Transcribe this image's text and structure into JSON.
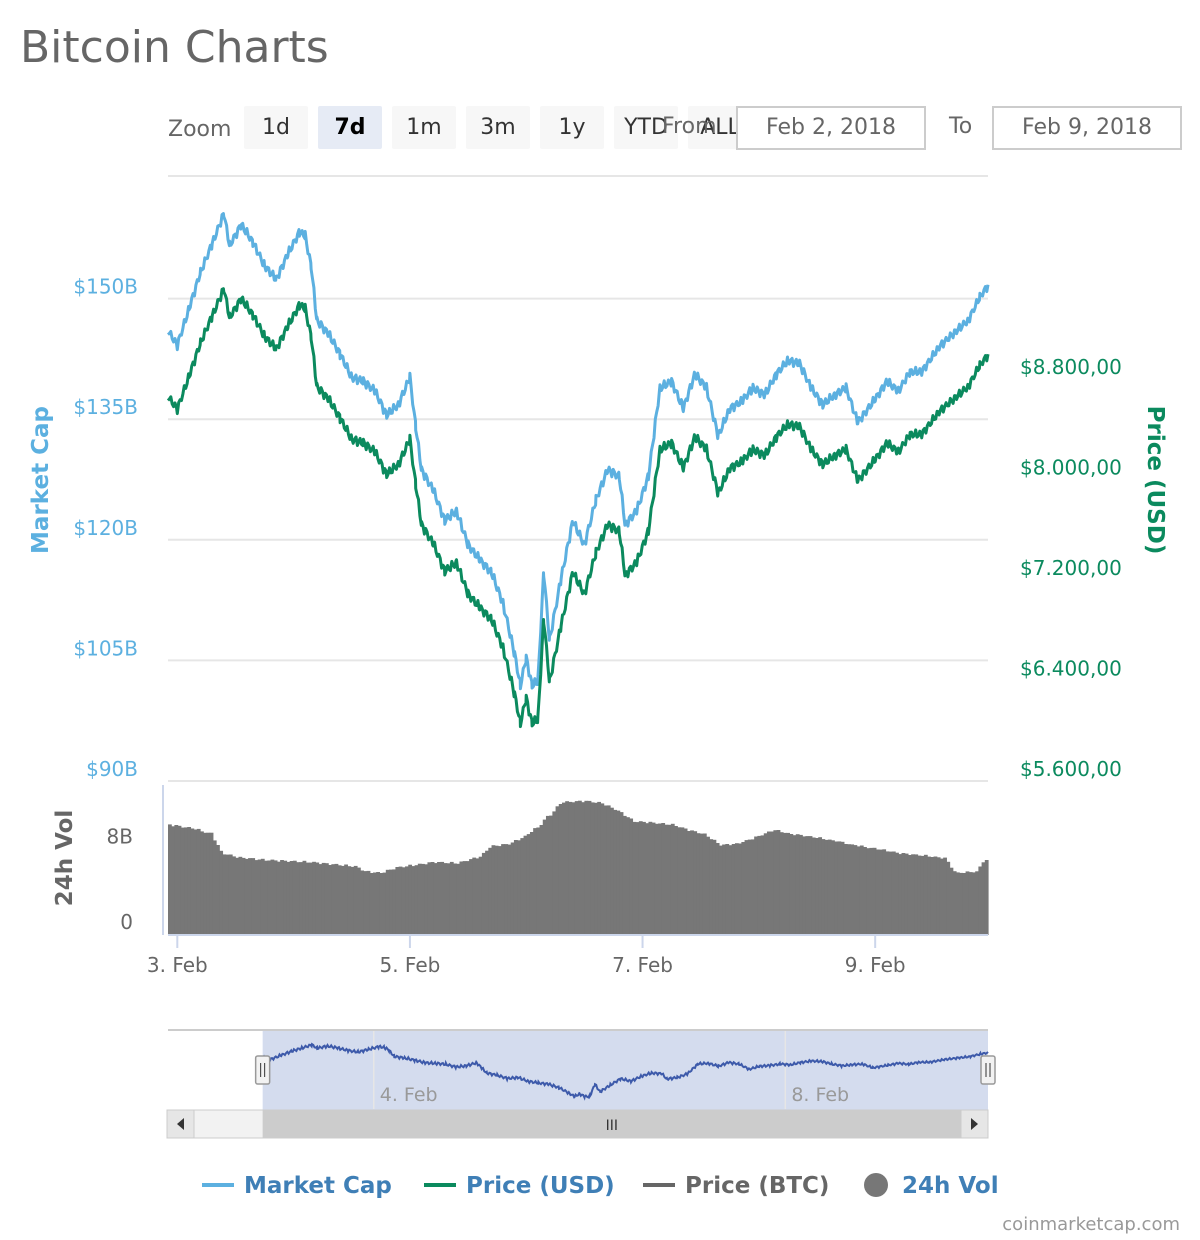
{
  "page": {
    "title": "Bitcoin Charts",
    "credit": "coinmarketcap.com"
  },
  "range_selector": {
    "zoom_label": "Zoom",
    "buttons": [
      "1d",
      "7d",
      "1m",
      "3m",
      "1y",
      "YTD",
      "ALL"
    ],
    "active_button": "7d",
    "from_label": "From",
    "from_value": "Feb 2, 2018",
    "to_label": "To",
    "to_value": "Feb 9, 2018"
  },
  "colors": {
    "market_cap": "#5cb0e0",
    "price_usd": "#0b8a5e",
    "price_btc": "#666666",
    "volume": "#777777",
    "navigator_fill": "#ccd6eb",
    "navigator_line": "#3d5aaa",
    "legend_text": "#3f7fb6",
    "active_button_bg": "#e6ebf5"
  },
  "chart_data": {
    "type": "line",
    "x_ticks": [
      "3. Feb",
      "5. Feb",
      "7. Feb",
      "9. Feb"
    ],
    "x_tick_days": [
      3,
      5,
      7,
      9
    ],
    "x_range_days": [
      2.92,
      9.97
    ],
    "left_axis": {
      "title": "Market Cap",
      "ticks": [
        "$150B",
        "$135B",
        "$120B",
        "$105B",
        "$90B"
      ],
      "tick_values": [
        150,
        135,
        120,
        105,
        90
      ],
      "range": [
        90,
        165
      ]
    },
    "right_axis": {
      "title": "Price (USD)",
      "ticks": [
        "$8.800,00",
        "$8.000,00",
        "$7.200,00",
        "$6.400,00",
        "$5.600,00"
      ],
      "tick_values": [
        8800,
        8000,
        7200,
        6400,
        5600
      ],
      "range": [
        5600,
        10400
      ]
    },
    "series": [
      {
        "name": "Price (USD)",
        "axis": "right",
        "points": [
          [
            2.92,
            8620
          ],
          [
            3.0,
            8520
          ],
          [
            3.1,
            8780
          ],
          [
            3.2,
            9050
          ],
          [
            3.3,
            9260
          ],
          [
            3.4,
            9480
          ],
          [
            3.45,
            9250
          ],
          [
            3.55,
            9400
          ],
          [
            3.65,
            9270
          ],
          [
            3.75,
            9100
          ],
          [
            3.85,
            9000
          ],
          [
            3.95,
            9180
          ],
          [
            4.05,
            9350
          ],
          [
            4.1,
            9320
          ],
          [
            4.15,
            9100
          ],
          [
            4.2,
            8700
          ],
          [
            4.3,
            8600
          ],
          [
            4.4,
            8450
          ],
          [
            4.5,
            8280
          ],
          [
            4.6,
            8250
          ],
          [
            4.7,
            8180
          ],
          [
            4.8,
            8000
          ],
          [
            4.9,
            8080
          ],
          [
            5.0,
            8280
          ],
          [
            5.05,
            7920
          ],
          [
            5.1,
            7600
          ],
          [
            5.2,
            7450
          ],
          [
            5.3,
            7230
          ],
          [
            5.4,
            7300
          ],
          [
            5.5,
            7050
          ],
          [
            5.6,
            6940
          ],
          [
            5.7,
            6850
          ],
          [
            5.8,
            6620
          ],
          [
            5.9,
            6250
          ],
          [
            5.95,
            6020
          ],
          [
            6.0,
            6220
          ],
          [
            6.05,
            6020
          ],
          [
            6.1,
            6050
          ],
          [
            6.15,
            6850
          ],
          [
            6.2,
            6350
          ],
          [
            6.3,
            6800
          ],
          [
            6.4,
            7220
          ],
          [
            6.5,
            7050
          ],
          [
            6.6,
            7380
          ],
          [
            6.7,
            7600
          ],
          [
            6.8,
            7550
          ],
          [
            6.85,
            7200
          ],
          [
            6.95,
            7300
          ],
          [
            7.05,
            7550
          ],
          [
            7.15,
            8200
          ],
          [
            7.25,
            8250
          ],
          [
            7.35,
            8050
          ],
          [
            7.45,
            8300
          ],
          [
            7.55,
            8200
          ],
          [
            7.65,
            7850
          ],
          [
            7.75,
            8050
          ],
          [
            7.85,
            8100
          ],
          [
            7.95,
            8200
          ],
          [
            8.05,
            8150
          ],
          [
            8.15,
            8300
          ],
          [
            8.25,
            8400
          ],
          [
            8.35,
            8380
          ],
          [
            8.45,
            8200
          ],
          [
            8.55,
            8080
          ],
          [
            8.65,
            8150
          ],
          [
            8.75,
            8200
          ],
          [
            8.85,
            7950
          ],
          [
            9.0,
            8120
          ],
          [
            9.1,
            8250
          ],
          [
            9.2,
            8180
          ],
          [
            9.3,
            8320
          ],
          [
            9.4,
            8320
          ],
          [
            9.55,
            8500
          ],
          [
            9.7,
            8620
          ],
          [
            9.8,
            8700
          ],
          [
            9.9,
            8870
          ],
          [
            9.97,
            8950
          ]
        ]
      },
      {
        "name": "Market Cap",
        "axis": "left",
        "points": [
          [
            2.92,
            146.0
          ],
          [
            3.0,
            144.2
          ],
          [
            3.1,
            148.7
          ],
          [
            3.2,
            153.3
          ],
          [
            3.3,
            156.8
          ],
          [
            3.4,
            160.6
          ],
          [
            3.45,
            156.6
          ],
          [
            3.55,
            159.2
          ],
          [
            3.65,
            157.0
          ],
          [
            3.75,
            154.1
          ],
          [
            3.85,
            152.4
          ],
          [
            3.95,
            155.5
          ],
          [
            4.05,
            158.3
          ],
          [
            4.1,
            157.8
          ],
          [
            4.15,
            154.1
          ],
          [
            4.2,
            147.3
          ],
          [
            4.3,
            145.6
          ],
          [
            4.4,
            143.1
          ],
          [
            4.5,
            140.2
          ],
          [
            4.6,
            139.7
          ],
          [
            4.7,
            138.5
          ],
          [
            4.8,
            135.5
          ],
          [
            4.9,
            136.8
          ],
          [
            5.0,
            140.2
          ],
          [
            5.05,
            134.1
          ],
          [
            5.1,
            128.7
          ],
          [
            5.2,
            126.2
          ],
          [
            5.3,
            122.4
          ],
          [
            5.4,
            123.6
          ],
          [
            5.5,
            119.4
          ],
          [
            5.6,
            117.5
          ],
          [
            5.7,
            116.0
          ],
          [
            5.8,
            112.1
          ],
          [
            5.9,
            105.8
          ],
          [
            5.95,
            101.9
          ],
          [
            6.0,
            105.3
          ],
          [
            6.05,
            101.9
          ],
          [
            6.1,
            102.4
          ],
          [
            6.15,
            116.0
          ],
          [
            6.2,
            107.5
          ],
          [
            6.3,
            115.2
          ],
          [
            6.4,
            122.3
          ],
          [
            6.5,
            119.4
          ],
          [
            6.6,
            125.0
          ],
          [
            6.7,
            128.7
          ],
          [
            6.8,
            127.9
          ],
          [
            6.85,
            121.9
          ],
          [
            6.95,
            123.6
          ],
          [
            7.05,
            127.9
          ],
          [
            7.15,
            138.9
          ],
          [
            7.25,
            139.7
          ],
          [
            7.35,
            136.3
          ],
          [
            7.45,
            140.6
          ],
          [
            7.55,
            138.9
          ],
          [
            7.65,
            132.9
          ],
          [
            7.75,
            136.3
          ],
          [
            7.85,
            137.2
          ],
          [
            7.95,
            138.9
          ],
          [
            8.05,
            138.0
          ],
          [
            8.15,
            140.6
          ],
          [
            8.25,
            142.3
          ],
          [
            8.35,
            141.9
          ],
          [
            8.45,
            138.9
          ],
          [
            8.55,
            136.8
          ],
          [
            8.65,
            138.0
          ],
          [
            8.75,
            138.9
          ],
          [
            8.85,
            134.6
          ],
          [
            9.0,
            137.5
          ],
          [
            9.1,
            139.7
          ],
          [
            9.2,
            138.5
          ],
          [
            9.3,
            140.9
          ],
          [
            9.4,
            140.9
          ],
          [
            9.55,
            144.0
          ],
          [
            9.7,
            146.0
          ],
          [
            9.8,
            147.3
          ],
          [
            9.9,
            150.2
          ],
          [
            9.97,
            151.6
          ]
        ]
      },
      {
        "name": "24h Vol",
        "axis": "volume",
        "volume_axis": {
          "title": "24h Vol",
          "ticks": [
            "8B",
            "0"
          ],
          "tick_values": [
            8,
            0
          ],
          "range": [
            0,
            14
          ]
        },
        "points": [
          [
            2.92,
            10.3
          ],
          [
            3.1,
            10.0
          ],
          [
            3.25,
            9.5
          ],
          [
            3.35,
            7.6
          ],
          [
            3.5,
            7.2
          ],
          [
            3.7,
            7.0
          ],
          [
            3.9,
            6.9
          ],
          [
            4.1,
            6.8
          ],
          [
            4.3,
            6.6
          ],
          [
            4.5,
            6.4
          ],
          [
            4.6,
            5.9
          ],
          [
            4.7,
            5.8
          ],
          [
            4.85,
            6.3
          ],
          [
            5.0,
            6.5
          ],
          [
            5.2,
            6.8
          ],
          [
            5.4,
            6.7
          ],
          [
            5.6,
            7.3
          ],
          [
            5.7,
            8.3
          ],
          [
            5.85,
            8.5
          ],
          [
            6.0,
            9.2
          ],
          [
            6.1,
            10.0
          ],
          [
            6.2,
            11.2
          ],
          [
            6.3,
            12.4
          ],
          [
            6.5,
            12.5
          ],
          [
            6.65,
            12.3
          ],
          [
            6.8,
            11.6
          ],
          [
            6.95,
            10.6
          ],
          [
            7.1,
            10.5
          ],
          [
            7.3,
            10.3
          ],
          [
            7.45,
            9.8
          ],
          [
            7.6,
            9.4
          ],
          [
            7.75,
            8.4
          ],
          [
            7.9,
            8.5
          ],
          [
            8.05,
            9.0
          ],
          [
            8.25,
            9.8
          ],
          [
            8.4,
            9.4
          ],
          [
            8.6,
            9.1
          ],
          [
            8.75,
            8.8
          ],
          [
            8.9,
            8.4
          ],
          [
            9.05,
            8.1
          ],
          [
            9.3,
            7.6
          ],
          [
            9.5,
            7.4
          ],
          [
            9.65,
            7.2
          ],
          [
            9.75,
            5.8
          ],
          [
            9.9,
            5.9
          ],
          [
            9.97,
            7.0
          ]
        ]
      }
    ],
    "navigator": {
      "ticks": [
        "4. Feb",
        "8. Feb"
      ],
      "tick_days": [
        4,
        8
      ],
      "range_days": [
        2.0,
        9.97
      ],
      "selected_days": [
        2.92,
        9.97
      ]
    },
    "legend": {
      "items": [
        "Market Cap",
        "Price (USD)",
        "Price (BTC)",
        "24h Vol"
      ],
      "placement": "bottom"
    },
    "grid": true
  }
}
